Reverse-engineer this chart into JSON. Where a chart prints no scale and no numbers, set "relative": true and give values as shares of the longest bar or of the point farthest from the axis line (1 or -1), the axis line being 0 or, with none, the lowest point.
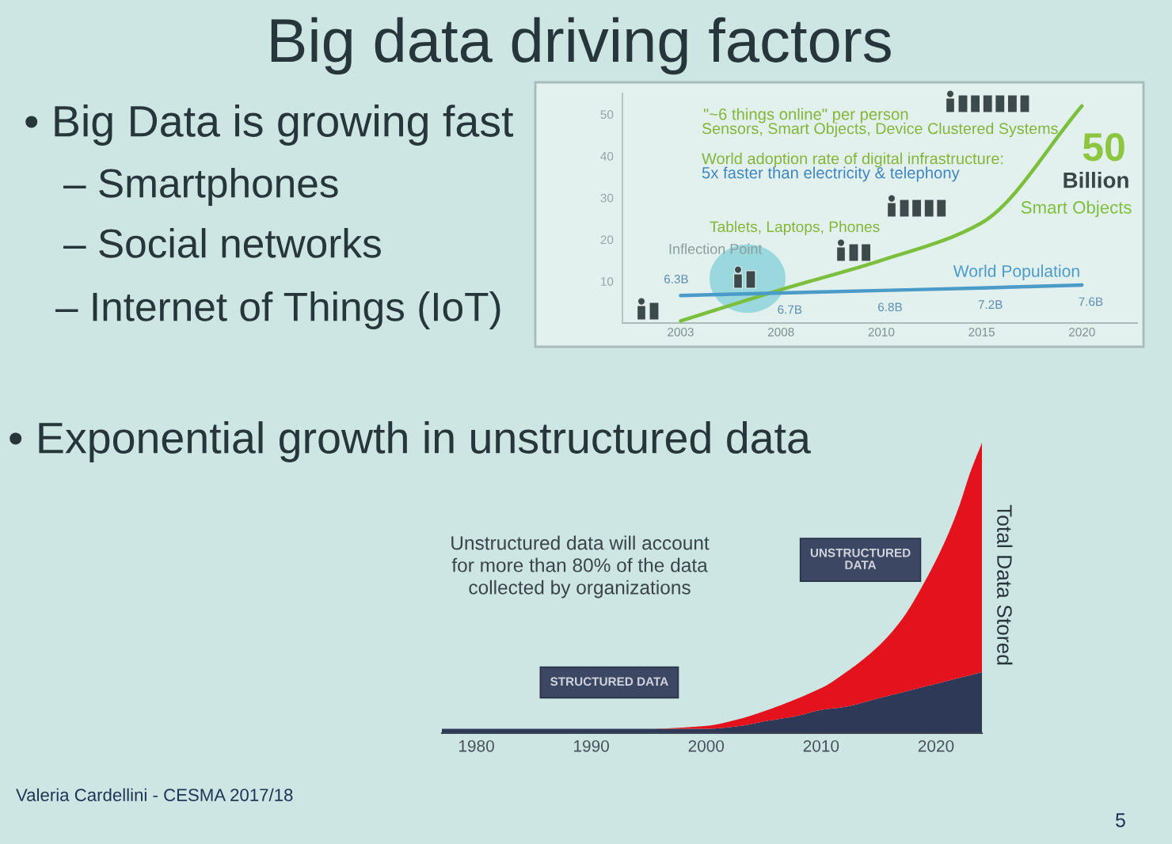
{
  "chart_data": [
    {
      "type": "other",
      "title": "Big data driving factors",
      "annotations": [
        "• Big Data is growing fast",
        "– Smartphones",
        "– Social networks",
        "– Internet of Things (IoT)",
        "• Exponential growth in unstructured data",
        "Valeria Cardellini - CESMA 2017/18",
        "5"
      ]
    },
    {
      "type": "line",
      "categories": [
        "2003",
        "2008",
        "2010",
        "2015",
        "2020"
      ],
      "ylim": [
        0,
        55
      ],
      "yticks": [
        10,
        20,
        30,
        40,
        50
      ],
      "series": [
        {
          "name": "Smart Objects",
          "color": "#7cbf3c",
          "values": [
            0.5,
            8,
            15,
            24,
            52
          ]
        },
        {
          "name": "World Population",
          "color": "#4b9bc9",
          "values": [
            6.6,
            7.2,
            7.8,
            8.4,
            9.1
          ]
        }
      ],
      "annotations": [
        "\"~6 things online\" per person",
        "Sensors, Smart Objects, Device Clustered Systems",
        "World adoption rate of digital infrastructure:",
        "5x faster than electricity & telephony",
        "Tablets, Laptops, Phones",
        "Inflection Point",
        "50",
        "Billion",
        {
          "text": "6.3B",
          "x": "2003",
          "y": 6.6
        },
        {
          "text": "6.7B",
          "x": "2008",
          "y": 7.2
        },
        {
          "text": "6.8B",
          "x": "2010",
          "y": 7.8
        },
        {
          "text": "7.2B",
          "x": "2015",
          "y": 8.4
        },
        {
          "text": "7.6B",
          "x": "2020",
          "y": 9.1
        }
      ]
    },
    {
      "type": "area",
      "stacked": true,
      "relative": true,
      "x": [
        1977,
        1985,
        1990,
        1995,
        2000,
        2003,
        2005,
        2008,
        2010,
        2012,
        2015,
        2017,
        2019,
        2021,
        2022,
        2023,
        2024
      ],
      "xlim": [
        1977,
        2024
      ],
      "xticks": [
        1980,
        1990,
        2000,
        2010,
        2020
      ],
      "ylabel": "Total Data Stored",
      "series": [
        {
          "name": "STRUCTURED DATA",
          "color": "#2e3957",
          "values": [
            0.015,
            0.015,
            0.015,
            0.015,
            0.015,
            0.025,
            0.04,
            0.06,
            0.08,
            0.09,
            0.12,
            0.14,
            0.16,
            0.18,
            0.19,
            0.2,
            0.21
          ]
        },
        {
          "name": "UNSTRUCTURED DATA",
          "color": "#e3121c",
          "values": [
            0,
            0,
            0,
            0,
            0.01,
            0.025,
            0.035,
            0.06,
            0.075,
            0.115,
            0.18,
            0.25,
            0.36,
            0.5,
            0.59,
            0.7,
            0.79
          ]
        }
      ],
      "annotations": [
        "Unstructured data will account\nfor more than 80% of the data\ncollected by organizations"
      ]
    }
  ]
}
